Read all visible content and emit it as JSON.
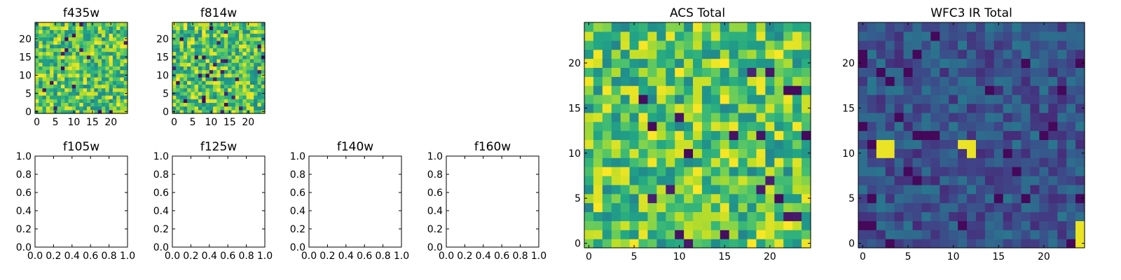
{
  "figure": {
    "colormap": "viridis",
    "panels": [
      {
        "id": "f435w",
        "title": "f435w",
        "kind": "image",
        "xticks": [
          "0",
          "5",
          "10",
          "15",
          "20"
        ],
        "yticks": [
          "0",
          "5",
          "10",
          "15",
          "20"
        ]
      },
      {
        "id": "f814w",
        "title": "f814w",
        "kind": "image",
        "xticks": [
          "0",
          "5",
          "10",
          "15",
          "20"
        ],
        "yticks": [
          "0",
          "5",
          "10",
          "15",
          "20"
        ]
      },
      {
        "id": "f105w",
        "title": "f105w",
        "kind": "empty",
        "xticks": [
          "0.0",
          "0.2",
          "0.4",
          "0.6",
          "0.8",
          "1.0"
        ],
        "yticks": [
          "0.0",
          "0.2",
          "0.4",
          "0.6",
          "0.8",
          "1.0"
        ]
      },
      {
        "id": "f125w",
        "title": "f125w",
        "kind": "empty",
        "xticks": [
          "0.0",
          "0.2",
          "0.4",
          "0.6",
          "0.8",
          "1.0"
        ],
        "yticks": [
          "0.0",
          "0.2",
          "0.4",
          "0.6",
          "0.8",
          "1.0"
        ]
      },
      {
        "id": "f140w",
        "title": "f140w",
        "kind": "empty",
        "xticks": [
          "0.0",
          "0.2",
          "0.4",
          "0.6",
          "0.8",
          "1.0"
        ],
        "yticks": [
          "0.0",
          "0.2",
          "0.4",
          "0.6",
          "0.8",
          "1.0"
        ]
      },
      {
        "id": "f160w",
        "title": "f160w",
        "kind": "empty",
        "xticks": [
          "0.0",
          "0.2",
          "0.4",
          "0.6",
          "0.8",
          "1.0"
        ],
        "yticks": [
          "0.0",
          "0.2",
          "0.4",
          "0.6",
          "0.8",
          "1.0"
        ]
      },
      {
        "id": "acs-total",
        "title": "ACS Total",
        "kind": "image",
        "xticks": [
          "0",
          "5",
          "10",
          "15",
          "20"
        ],
        "yticks": [
          "0",
          "5",
          "10",
          "15",
          "20"
        ]
      },
      {
        "id": "wfc3-ir-total",
        "title": "WFC3 IR Total",
        "kind": "image",
        "xticks": [
          "0",
          "5",
          "10",
          "15",
          "20"
        ],
        "yticks": [
          "0",
          "5",
          "10",
          "15",
          "20"
        ]
      }
    ]
  },
  "chart_data": [
    {
      "type": "heatmap",
      "title": "f435w",
      "grid_size": [
        25,
        25
      ],
      "xlim": [
        -0.5,
        24.5
      ],
      "ylim": [
        -0.5,
        24.5
      ],
      "origin": "lower",
      "colormap": "viridis",
      "seed": 435,
      "profile": "noise-high",
      "grid": false
    },
    {
      "type": "heatmap",
      "title": "f814w",
      "grid_size": [
        25,
        25
      ],
      "xlim": [
        -0.5,
        24.5
      ],
      "ylim": [
        -0.5,
        24.5
      ],
      "origin": "lower",
      "colormap": "viridis",
      "seed": 814,
      "profile": "noise-high",
      "grid": false
    },
    {
      "type": "empty",
      "title": "f105w",
      "xlim": [
        0,
        1
      ],
      "ylim": [
        0,
        1
      ]
    },
    {
      "type": "empty",
      "title": "f125w",
      "xlim": [
        0,
        1
      ],
      "ylim": [
        0,
        1
      ]
    },
    {
      "type": "empty",
      "title": "f140w",
      "xlim": [
        0,
        1
      ],
      "ylim": [
        0,
        1
      ]
    },
    {
      "type": "empty",
      "title": "f160w",
      "xlim": [
        0,
        1
      ],
      "ylim": [
        0,
        1
      ]
    },
    {
      "type": "heatmap",
      "title": "ACS Total",
      "grid_size": [
        25,
        25
      ],
      "xlim": [
        -0.5,
        24.5
      ],
      "ylim": [
        -0.5,
        24.5
      ],
      "origin": "lower",
      "colormap": "viridis",
      "seed": 1001,
      "profile": "noise-high",
      "grid": false
    },
    {
      "type": "heatmap",
      "title": "WFC3 IR Total",
      "grid_size": [
        25,
        25
      ],
      "xlim": [
        -0.5,
        24.5
      ],
      "ylim": [
        -0.5,
        24.5
      ],
      "origin": "lower",
      "colormap": "viridis",
      "seed": 3001,
      "profile": "noise-low",
      "bright_pixels": [
        [
          2,
          10
        ],
        [
          3,
          10
        ],
        [
          2,
          11
        ],
        [
          3,
          11
        ],
        [
          11,
          11
        ],
        [
          12,
          11
        ],
        [
          12,
          10
        ],
        [
          24,
          0
        ],
        [
          24,
          1
        ],
        [
          24,
          2
        ]
      ],
      "grid": false
    }
  ]
}
